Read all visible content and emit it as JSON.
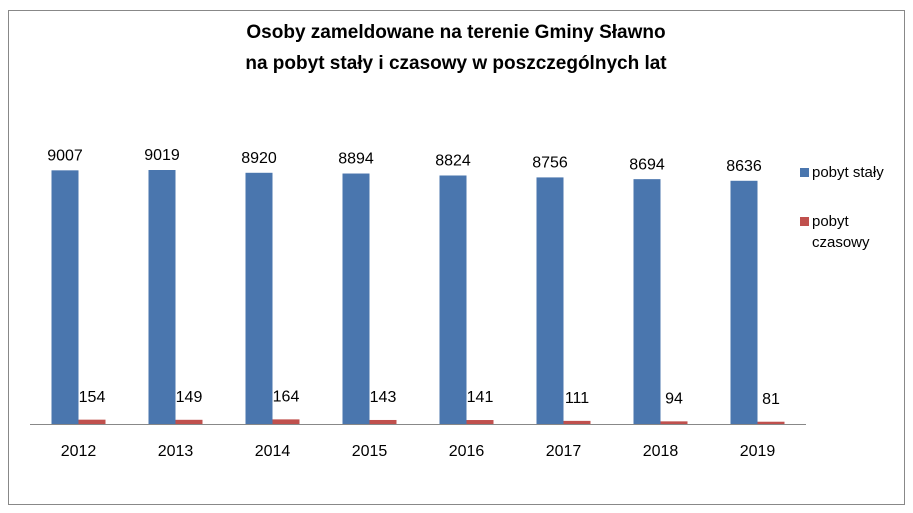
{
  "chart_data": {
    "type": "bar",
    "title": [
      "Osoby zameldowane na terenie Gminy Sławno",
      "na pobyt stały i czasowy w poszczególnych lat"
    ],
    "categories": [
      "2012",
      "2013",
      "2014",
      "2015",
      "2016",
      "2017",
      "2018",
      "2019"
    ],
    "series": [
      {
        "name": "pobyt stały",
        "color": "#4a76ae",
        "values": [
          9007,
          9019,
          8920,
          8894,
          8824,
          8756,
          8694,
          8636
        ]
      },
      {
        "name": "pobyt czasowy",
        "color": "#c0504d",
        "values": [
          154,
          149,
          164,
          143,
          141,
          111,
          94,
          81
        ]
      }
    ],
    "legend": "right"
  }
}
